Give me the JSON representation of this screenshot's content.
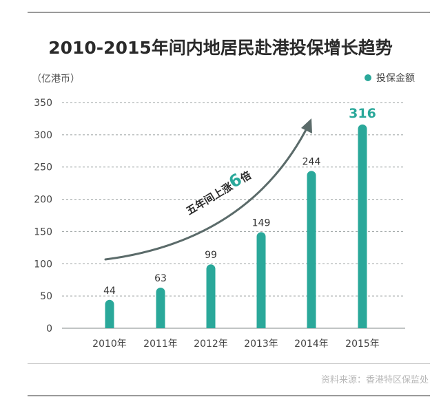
{
  "chart_data": {
    "type": "bar",
    "title": "2010-2015年间内地居民赴港投保增长趋势",
    "unit": "（亿港币）",
    "legend": [
      "投保金额"
    ],
    "legend_position": "top-right",
    "categories": [
      "2010年",
      "2011年",
      "2012年",
      "2013年",
      "2014年",
      "2015年"
    ],
    "series": [
      {
        "name": "投保金额",
        "values": [
          44,
          63,
          99,
          149,
          244,
          316
        ]
      }
    ],
    "ylim": [
      0,
      350
    ],
    "yticks": [
      0,
      50,
      100,
      150,
      200,
      250,
      300,
      350
    ],
    "grid": true,
    "annotation": {
      "prefix": "五年间上涨",
      "number": "6",
      "suffix": "倍"
    },
    "highlight_index": 5
  },
  "colors": {
    "bar": "#2aa89a",
    "highlight_label": "#2aa89a",
    "arrow": "#5b6b6a",
    "grid": "#9aa0a0",
    "axis_text": "#444444"
  },
  "source": "资料来源：香港特区保监处"
}
